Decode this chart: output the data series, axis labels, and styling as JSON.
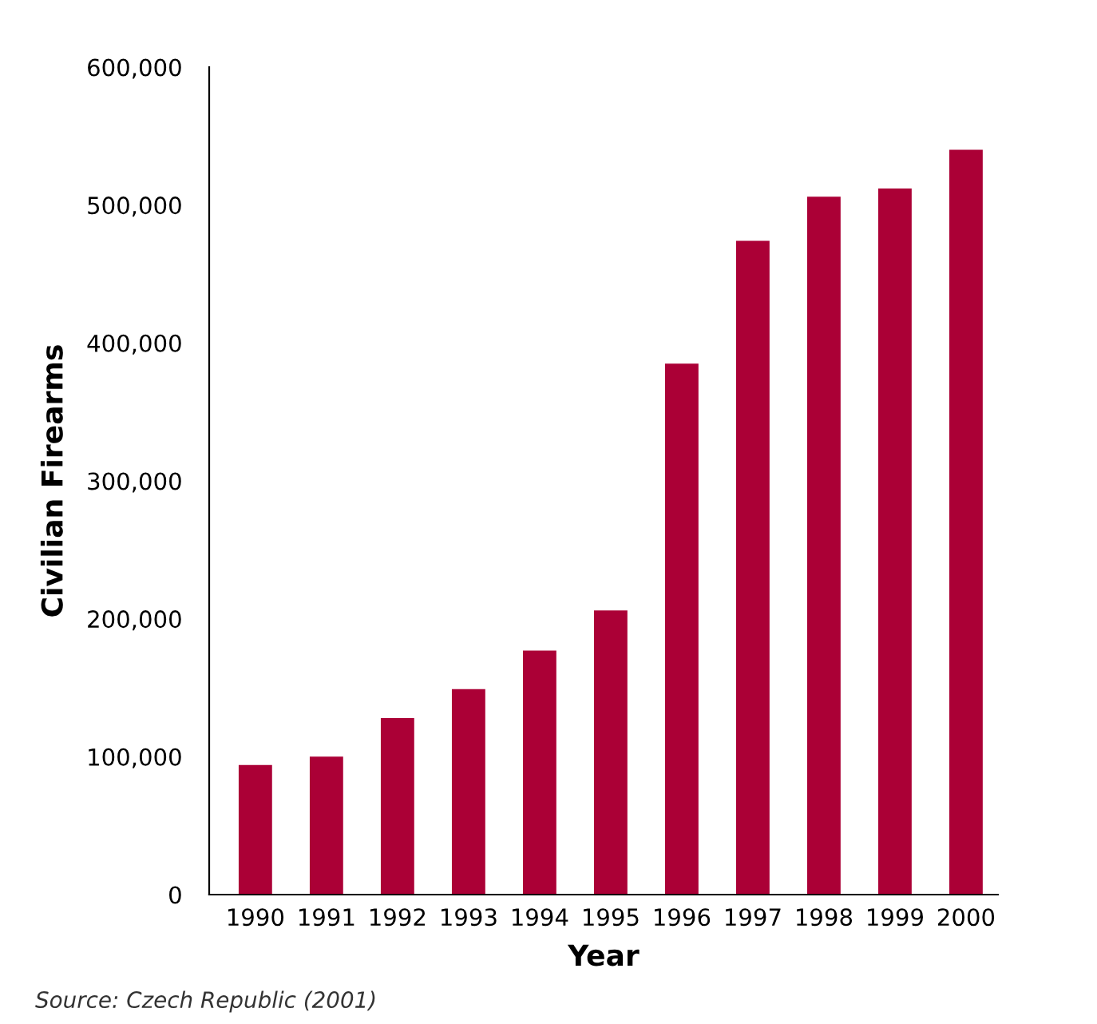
{
  "chart_data": {
    "type": "bar",
    "xlabel": "Year",
    "ylabel": "Civilian Firearms",
    "categories": [
      "1990",
      "1991",
      "1992",
      "1993",
      "1994",
      "1995",
      "1996",
      "1997",
      "1998",
      "1999",
      "2000"
    ],
    "values": [
      94000,
      100000,
      128000,
      149000,
      177000,
      206000,
      385000,
      474000,
      506000,
      512000,
      540000
    ],
    "color": "#ab0036",
    "ylim": [
      0,
      600000
    ],
    "yticks": [
      {
        "value": 0,
        "label": "0"
      },
      {
        "value": 100000,
        "label": "100,000"
      },
      {
        "value": 200000,
        "label": "200,000"
      },
      {
        "value": 300000,
        "label": "300,000"
      },
      {
        "value": 400000,
        "label": "400,000"
      },
      {
        "value": 500000,
        "label": "500,000"
      },
      {
        "value": 600000,
        "label": "600,000"
      }
    ],
    "grid": false,
    "annotations": [
      "Source: Czech Republic (2001)"
    ]
  }
}
